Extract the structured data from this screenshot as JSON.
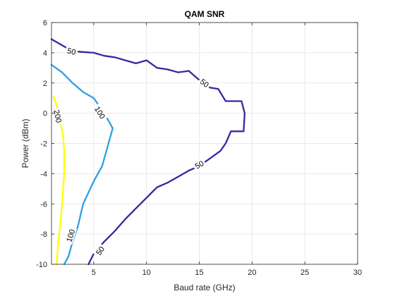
{
  "chart_data": {
    "type": "contour",
    "title": "QAM SNR",
    "xlabel": "Baud rate (GHz)",
    "ylabel": "Power (dBm)",
    "xlim": [
      1,
      30
    ],
    "ylim": [
      -10,
      6
    ],
    "x_ticks": [
      5,
      10,
      15,
      20,
      25,
      30
    ],
    "y_ticks": [
      -10,
      -8,
      -6,
      -4,
      -2,
      0,
      2,
      4,
      6
    ],
    "grid": true,
    "series": [
      {
        "level": "200",
        "color": "#ffff00",
        "points": [
          [
            1.2,
            1.1
          ],
          [
            1.5,
            0.5
          ],
          [
            1.8,
            -0.5
          ],
          [
            2.1,
            -1.5
          ],
          [
            2.2,
            -2.5
          ],
          [
            2.2,
            -4
          ],
          [
            2.0,
            -6
          ],
          [
            1.8,
            -7.5
          ],
          [
            1.6,
            -8.8
          ],
          [
            1.5,
            -10
          ]
        ],
        "labels": [
          {
            "text": "200",
            "x": 1.6,
            "y": -0.2
          }
        ]
      },
      {
        "level": "100",
        "color": "#2f9fe2",
        "points": [
          [
            1.0,
            3.2
          ],
          [
            2.0,
            2.7
          ],
          [
            3.0,
            2.0
          ],
          [
            4.0,
            1.4
          ],
          [
            5.0,
            1.0
          ],
          [
            6.0,
            0.0
          ],
          [
            6.8,
            -1.0
          ],
          [
            6.4,
            -2.0
          ],
          [
            5.8,
            -3.5
          ],
          [
            5.0,
            -4.5
          ],
          [
            4.0,
            -6.0
          ],
          [
            3.5,
            -7.5
          ],
          [
            3.0,
            -8.5
          ],
          [
            2.6,
            -9.5
          ],
          [
            2.2,
            -10
          ]
        ],
        "labels": [
          {
            "text": "100",
            "x": 5.6,
            "y": 0.05
          },
          {
            "text": "100",
            "x": 2.8,
            "y": -8.1
          }
        ]
      },
      {
        "level": "50",
        "color": "#3727a1",
        "points": [
          [
            1.0,
            4.9
          ],
          [
            2.0,
            4.5
          ],
          [
            3.0,
            4.1
          ],
          [
            5.0,
            4.0
          ],
          [
            6.0,
            3.8
          ],
          [
            7.0,
            3.7
          ],
          [
            8.0,
            3.5
          ],
          [
            9.0,
            3.3
          ],
          [
            10.0,
            3.5
          ],
          [
            11.0,
            3.0
          ],
          [
            12.0,
            2.9
          ],
          [
            13.0,
            2.7
          ],
          [
            14.0,
            2.8
          ],
          [
            15.0,
            2.2
          ],
          [
            16.0,
            1.7
          ],
          [
            16.8,
            1.6
          ],
          [
            17.5,
            0.8
          ],
          [
            18.0,
            0.8
          ],
          [
            19.0,
            0.8
          ],
          [
            19.3,
            0.0
          ],
          [
            19.2,
            -1.2
          ],
          [
            18.0,
            -1.2
          ],
          [
            17.5,
            -2.0
          ],
          [
            17.0,
            -2.5
          ],
          [
            16.0,
            -3.0
          ],
          [
            15.0,
            -3.5
          ],
          [
            14.0,
            -3.8
          ],
          [
            13.0,
            -4.2
          ],
          [
            12.0,
            -4.6
          ],
          [
            11.0,
            -4.9
          ],
          [
            10.0,
            -5.6
          ],
          [
            9.0,
            -6.3
          ],
          [
            8.0,
            -7.0
          ],
          [
            7.0,
            -7.8
          ],
          [
            6.0,
            -8.5
          ],
          [
            5.0,
            -9.3
          ],
          [
            4.5,
            -10
          ]
        ],
        "labels": [
          {
            "text": "50",
            "x": 2.9,
            "y": 4.1
          },
          {
            "text": "50",
            "x": 15.5,
            "y": 2.0
          },
          {
            "text": "50",
            "x": 15.0,
            "y": -3.4
          },
          {
            "text": "50",
            "x": 5.6,
            "y": -9.1
          }
        ]
      }
    ]
  }
}
